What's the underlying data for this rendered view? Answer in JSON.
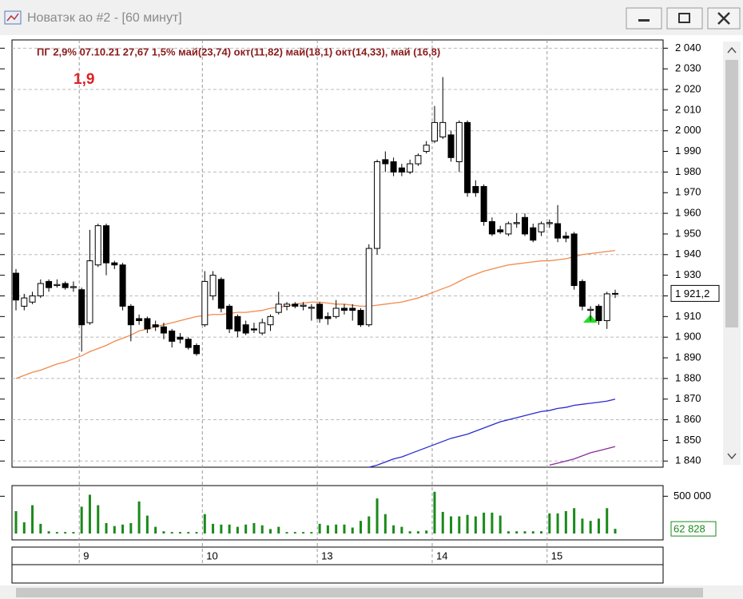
{
  "window": {
    "title": "Новатэк ао #2 - [60 минут]"
  },
  "chart_data": [
    {
      "type": "candlestick",
      "annotations": [
        "ПГ 2,9% 07.10.21 27,67  1,5% май(23,74) окт(11,82) май(18,1) окт(14,33), май (16,8)",
        "1,9"
      ],
      "categories": [
        null,
        null,
        null,
        null,
        null,
        null,
        null,
        null,
        "9",
        null,
        null,
        null,
        null,
        null,
        null,
        null,
        null,
        null,
        null,
        null,
        null,
        null,
        null,
        "10",
        null,
        null,
        null,
        null,
        null,
        null,
        null,
        null,
        null,
        null,
        null,
        null,
        null,
        "13",
        null,
        null,
        null,
        null,
        null,
        null,
        null,
        null,
        null,
        null,
        null,
        null,
        null,
        "14",
        null,
        null,
        null,
        null,
        null,
        null,
        null,
        null,
        null,
        null,
        null,
        null,
        null,
        "15",
        null,
        null,
        null,
        null,
        null,
        null,
        null,
        null
      ],
      "open": [
        1931,
        1915,
        1917,
        1920,
        1927,
        1925,
        1926,
        1924,
        1923,
        1907,
        1935,
        1954,
        1936,
        1935,
        1915,
        1909,
        1909,
        1906,
        1905,
        1903,
        1900,
        1899,
        1896,
        1906,
        1920,
        1928,
        1915,
        1910,
        1906,
        1904,
        1902,
        1906,
        1912,
        1915,
        1916,
        1915,
        1914,
        1916,
        1910,
        1910,
        1914,
        1914,
        1913,
        1906,
        1943,
        1986,
        1985,
        1982,
        1980,
        1984,
        1990,
        1995,
        1997,
        1998,
        1985,
        2004,
        1973,
        1973,
        1956,
        1952,
        1950,
        1955,
        1958,
        1953,
        1951,
        1955,
        1955,
        1949,
        1950,
        1927,
        1913,
        1915,
        1908,
        1921
      ],
      "high": [
        1933,
        1921,
        1922,
        1928,
        1928,
        1928,
        1927,
        1927,
        1924,
        1952,
        1955,
        1955,
        1937,
        1936,
        1916,
        1911,
        1910,
        1908,
        1907,
        1904,
        1902,
        1900,
        1897,
        1932,
        1932,
        1929,
        1916,
        1911,
        1908,
        1907,
        1909,
        1911,
        1922,
        1917,
        1917,
        1917,
        1916,
        1917,
        1912,
        1918,
        1916,
        1916,
        1914,
        1945,
        1986,
        1990,
        1987,
        1984,
        1986,
        1989,
        1995,
        2012,
        2026,
        2000,
        2005,
        2005,
        1976,
        1974,
        1958,
        1954,
        1956,
        1960,
        1960,
        1955,
        1956,
        1957,
        1964,
        1951,
        1951,
        1928,
        1915,
        1916,
        1922,
        1923
      ],
      "low": [
        1913,
        1913,
        1916,
        1919,
        1922,
        1924,
        1923,
        1922,
        1893,
        1906,
        1934,
        1930,
        1933,
        1913,
        1898,
        1906,
        1902,
        1903,
        1899,
        1895,
        1897,
        1894,
        1891,
        1905,
        1918,
        1912,
        1902,
        1900,
        1901,
        1902,
        1901,
        1903,
        1911,
        1913,
        1914,
        1913,
        1908,
        1907,
        1906,
        1909,
        1911,
        1908,
        1905,
        1905,
        1940,
        1980,
        1978,
        1978,
        1979,
        1983,
        1989,
        1994,
        1996,
        1985,
        1980,
        1968,
        1968,
        1954,
        1949,
        1950,
        1949,
        1953,
        1949,
        1946,
        1949,
        1953,
        1946,
        1946,
        1923,
        1913,
        1908,
        1906,
        1904,
        1919
      ],
      "close": [
        1918,
        1919,
        1920,
        1926,
        1924,
        1925.5,
        1924,
        1924.5,
        1906,
        1937,
        1954,
        1936,
        1935,
        1915,
        1906,
        1908,
        1904,
        1905,
        1902,
        1898,
        1899,
        1895,
        1892,
        1927,
        1930,
        1914,
        1904,
        1903,
        1902,
        1903.5,
        1907,
        1910,
        1916,
        1916,
        1915,
        1915.5,
        1914.5,
        1909,
        1909,
        1914,
        1913,
        1913,
        1906,
        1943,
        1985,
        1984,
        1980,
        1980,
        1984,
        1988,
        1993,
        2004,
        2004,
        1987,
        2004,
        1970,
        1970,
        1956,
        1950,
        1951,
        1955,
        1955.5,
        1950,
        1947,
        1955,
        1955.5,
        1948,
        1948,
        1925,
        1915,
        1913.5,
        1908,
        1921,
        1921.2
      ],
      "last_label": "1 921,2",
      "up_color": "#ffffff",
      "down_color": "#000000",
      "series": [
        {
          "color": "#f08a4b",
          "values": [
            1880,
            1881.5,
            1883,
            1884,
            1885.5,
            1887,
            1888,
            1889.5,
            1891,
            1893,
            1894.5,
            1896,
            1898,
            1899.5,
            1901,
            1903,
            1904,
            1905,
            1906,
            1907,
            1908,
            1909,
            1910,
            1910.5,
            1911,
            1911,
            1911.5,
            1912,
            1912,
            1912.5,
            1913,
            1914,
            1914.5,
            1915,
            1916,
            1916.5,
            1917,
            1917,
            1916.5,
            1916,
            1916,
            1915.5,
            1915,
            1915,
            1915.5,
            1916,
            1916.5,
            1917,
            1918,
            1919,
            1920.5,
            1922,
            1923.5,
            1925,
            1927,
            1929,
            1930.5,
            1932,
            1933,
            1934,
            1935,
            1935.5,
            1936,
            1936.5,
            1937,
            1937,
            1937.5,
            1938,
            1939,
            1940,
            1940.5,
            1941,
            1941.5,
            1942
          ]
        },
        {
          "color": "#2b2bd0",
          "values": [
            null,
            null,
            null,
            null,
            null,
            null,
            null,
            null,
            null,
            null,
            null,
            null,
            null,
            null,
            null,
            null,
            null,
            null,
            null,
            null,
            null,
            null,
            null,
            null,
            null,
            null,
            null,
            null,
            null,
            null,
            null,
            null,
            null,
            null,
            null,
            null,
            null,
            null,
            null,
            null,
            null,
            null,
            null,
            1837,
            1838,
            1839.5,
            1841,
            1842,
            1843.5,
            1845,
            1846.5,
            1848,
            1849.5,
            1851,
            1852,
            1853,
            1854.5,
            1856,
            1857.5,
            1859,
            1860,
            1861,
            1862,
            1863,
            1864,
            1864.5,
            1865.5,
            1866,
            1867,
            1867.5,
            1868,
            1868.5,
            1869,
            1870
          ]
        },
        {
          "color": "#8a2b9a",
          "values": [
            null,
            null,
            null,
            null,
            null,
            null,
            null,
            null,
            null,
            null,
            null,
            null,
            null,
            null,
            null,
            null,
            null,
            null,
            null,
            null,
            null,
            null,
            null,
            null,
            null,
            null,
            null,
            null,
            null,
            null,
            null,
            null,
            null,
            null,
            null,
            null,
            null,
            null,
            null,
            null,
            null,
            null,
            null,
            null,
            null,
            null,
            null,
            null,
            null,
            null,
            null,
            null,
            null,
            null,
            null,
            null,
            null,
            null,
            null,
            null,
            null,
            null,
            null,
            null,
            null,
            1838,
            1839,
            1840,
            1841,
            1842.5,
            1844,
            1845,
            1846,
            1847
          ]
        }
      ],
      "ylim": [
        1837,
        2044
      ],
      "yticks": [
        {
          "value": 1840,
          "label": "1 840"
        },
        {
          "value": 1850,
          "label": "1 850"
        },
        {
          "value": 1860,
          "label": "1 860"
        },
        {
          "value": 1870,
          "label": "1 870"
        },
        {
          "value": 1880,
          "label": "1 880"
        },
        {
          "value": 1890,
          "label": "1 890"
        },
        {
          "value": 1900,
          "label": "1 900"
        },
        {
          "value": 1910,
          "label": "1 910"
        },
        {
          "value": 1920,
          "label": "1 920"
        },
        {
          "value": 1930,
          "label": "1 930"
        },
        {
          "value": 1940,
          "label": "1 940"
        },
        {
          "value": 1950,
          "label": "1 950"
        },
        {
          "value": 1960,
          "label": "1 960"
        },
        {
          "value": 1970,
          "label": "1 970"
        },
        {
          "value": 1980,
          "label": "1 980"
        },
        {
          "value": 1990,
          "label": "1 990"
        },
        {
          "value": 2000,
          "label": "2 000"
        },
        {
          "value": 2010,
          "label": "2 010"
        },
        {
          "value": 2020,
          "label": "2 020"
        },
        {
          "value": 2030,
          "label": "2 030"
        },
        {
          "value": 2040,
          "label": "2 040"
        }
      ],
      "grid": true
    },
    {
      "type": "bar",
      "color": "#1a8a1a",
      "values": [
        300000,
        150000,
        380000,
        130000,
        30000,
        20000,
        20000,
        20000,
        360000,
        520000,
        380000,
        140000,
        100000,
        120000,
        140000,
        430000,
        240000,
        90000,
        30000,
        20000,
        20000,
        20000,
        20000,
        260000,
        130000,
        120000,
        120000,
        90000,
        120000,
        140000,
        110000,
        60000,
        90000,
        20000,
        20000,
        20000,
        20000,
        130000,
        110000,
        120000,
        120000,
        80000,
        170000,
        230000,
        470000,
        260000,
        110000,
        90000,
        30000,
        30000,
        40000,
        560000,
        290000,
        230000,
        230000,
        250000,
        230000,
        280000,
        280000,
        240000,
        30000,
        30000,
        30000,
        30000,
        30000,
        270000,
        270000,
        300000,
        340000,
        200000,
        170000,
        200000,
        340000,
        62828
      ],
      "last_label": "62 828",
      "ylim": [
        0,
        600000
      ],
      "yticks": [
        {
          "value": 500000,
          "label": "500 000"
        }
      ]
    }
  ]
}
